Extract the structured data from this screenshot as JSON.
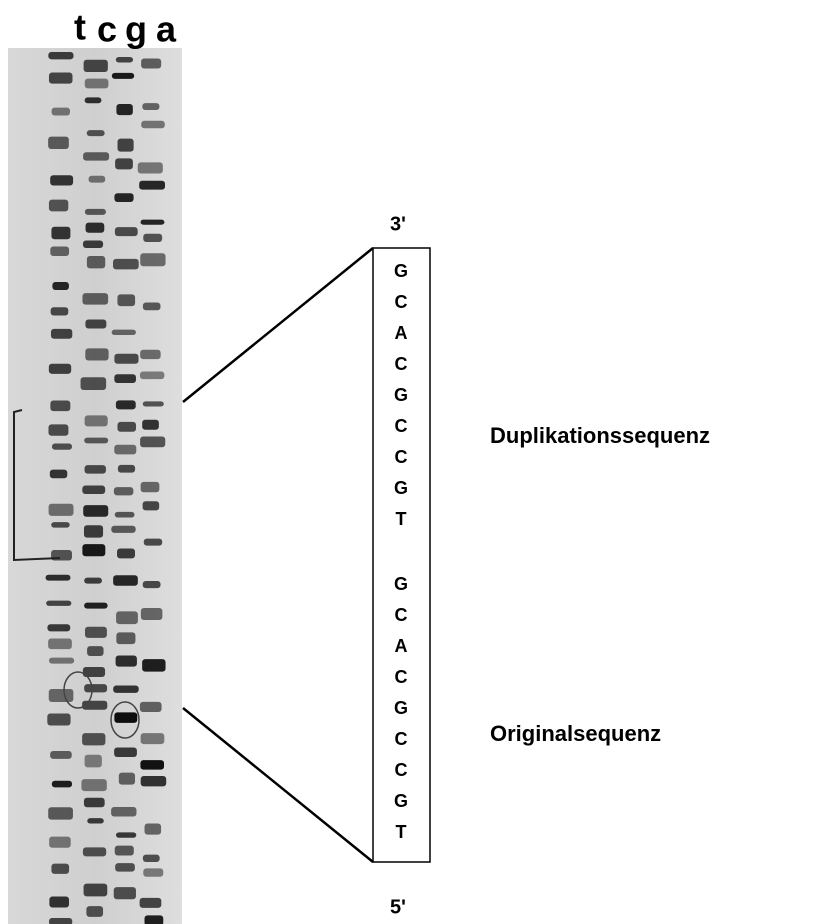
{
  "lanes": [
    "t",
    "c",
    "g",
    "a"
  ],
  "top_end": "3'",
  "bottom_end": "5'",
  "duplication": {
    "label": "Duplikationssequenz",
    "sequence": [
      "G",
      "C",
      "A",
      "C",
      "G",
      "C",
      "C",
      "G",
      "T"
    ]
  },
  "original": {
    "label": "Originalsequenz",
    "sequence": [
      "G",
      "C",
      "A",
      "C",
      "G",
      "C",
      "C",
      "G",
      "T"
    ]
  }
}
